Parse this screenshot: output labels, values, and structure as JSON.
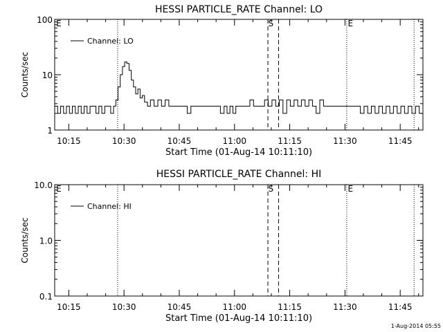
{
  "footer": {
    "timestamp": "1-Aug-2014 05:55"
  },
  "chart_data": [
    {
      "type": "line",
      "title": "HESSI PARTICLE_RATE Channel: LO",
      "xlabel": "Start Time (01-Aug-14 10:11:10)",
      "ylabel": "Counts/sec",
      "y_scale": "log",
      "ylim": [
        1,
        100
      ],
      "y_ticks": [
        1,
        10,
        100
      ],
      "y_tick_labels": [
        "1",
        "10",
        "100"
      ],
      "x_unit": "minutes after 10:11:10",
      "xlim": [
        0,
        100
      ],
      "x_ticks": [
        3.83,
        18.83,
        33.83,
        48.83,
        63.83,
        78.83,
        93.83
      ],
      "x_tick_labels": [
        "10:15",
        "10:30",
        "10:45",
        "11:00",
        "11:15",
        "11:30",
        "11:45"
      ],
      "legend": {
        "position": "top-left",
        "label": "Channel: LO"
      },
      "markers": [
        {
          "type": "dotted",
          "x": 17.1
        },
        {
          "type": "dashed",
          "x": 57.9
        },
        {
          "type": "dashed",
          "x": 60.8
        },
        {
          "type": "dotted",
          "x": 79.3
        },
        {
          "type": "dotted",
          "x": 97.6
        }
      ],
      "marker_labels": [
        {
          "text": "E",
          "x": 0.4
        },
        {
          "text": "S",
          "x": 58.0
        },
        {
          "text": "E",
          "x": 79.6
        }
      ],
      "series": [
        {
          "name": "Channel: LO",
          "x": [
            0,
            0.8,
            1.6,
            2.4,
            3.2,
            4.0,
            4.8,
            5.6,
            6.4,
            7.2,
            8.0,
            8.8,
            9.6,
            10.4,
            11.2,
            12.0,
            12.8,
            13.6,
            14.4,
            15.2,
            16.0,
            16.6,
            17.2,
            17.8,
            18.4,
            19.0,
            19.6,
            20.2,
            20.8,
            21.4,
            22.0,
            22.6,
            23.2,
            23.8,
            24.4,
            25.2,
            26.0,
            27.0,
            28.0,
            29.0,
            30.0,
            31.0,
            32.0,
            34.0,
            36.0,
            37.0,
            38.0,
            40.0,
            42.0,
            44.0,
            45.0,
            46.0,
            46.8,
            47.6,
            48.4,
            49.2,
            50.0,
            51.0,
            52.0,
            53.0,
            54.0,
            55.0,
            56.0,
            57.0,
            58.0,
            59.0,
            60.0,
            61.0,
            62.0,
            63.0,
            64.0,
            65.0,
            66.0,
            67.0,
            68.0,
            69.0,
            70.0,
            71.0,
            72.0,
            73.0,
            74.0,
            75.0,
            76.0,
            77.0,
            78.0,
            79.0,
            80.0,
            81.0,
            82.0,
            83.0,
            84.0,
            85.0,
            86.0,
            87.0,
            88.0,
            89.0,
            90.0,
            91.0,
            92.0,
            93.0,
            94.0,
            95.0,
            96.0,
            97.0,
            98.0,
            99.0,
            100.0
          ],
          "y": [
            2.7,
            2.0,
            2.7,
            2.0,
            2.7,
            2.0,
            2.7,
            2.0,
            2.7,
            2.0,
            2.7,
            2.0,
            2.7,
            2.7,
            2.0,
            2.7,
            2.0,
            2.7,
            2.7,
            2.0,
            2.7,
            3.5,
            6.0,
            10.0,
            14.0,
            17.0,
            16.0,
            12.0,
            8.0,
            6.0,
            4.5,
            5.5,
            3.8,
            4.2,
            3.2,
            2.7,
            3.5,
            2.7,
            3.5,
            2.7,
            3.5,
            2.7,
            2.7,
            2.7,
            2.0,
            2.7,
            2.7,
            2.7,
            2.7,
            2.7,
            2.0,
            2.7,
            2.0,
            2.7,
            2.0,
            2.7,
            2.7,
            2.7,
            2.7,
            3.5,
            2.7,
            2.7,
            2.7,
            3.5,
            2.7,
            3.5,
            2.7,
            3.5,
            2.0,
            3.5,
            2.7,
            3.5,
            2.7,
            3.5,
            2.7,
            3.5,
            2.7,
            2.0,
            3.5,
            2.7,
            2.7,
            2.7,
            2.7,
            2.7,
            2.7,
            2.7,
            2.7,
            2.7,
            2.7,
            2.0,
            2.7,
            2.0,
            2.7,
            2.0,
            2.7,
            2.0,
            2.7,
            2.0,
            2.7,
            2.0,
            2.7,
            2.0,
            2.7,
            2.0,
            2.7,
            2.0,
            2.0
          ]
        }
      ]
    },
    {
      "type": "line",
      "title": "HESSI PARTICLE_RATE Channel: HI",
      "xlabel": "Start Time (01-Aug-14 10:11:10)",
      "ylabel": "Counts/sec",
      "y_scale": "log",
      "ylim": [
        0.1,
        10
      ],
      "y_ticks": [
        0.1,
        1,
        10
      ],
      "y_tick_labels": [
        "0.1",
        "1.0",
        "10.0"
      ],
      "x_unit": "minutes after 10:11:10",
      "xlim": [
        0,
        100
      ],
      "x_ticks": [
        3.83,
        18.83,
        33.83,
        48.83,
        63.83,
        78.83,
        93.83
      ],
      "x_tick_labels": [
        "10:15",
        "10:30",
        "10:45",
        "11:00",
        "11:15",
        "11:30",
        "11:45"
      ],
      "legend": {
        "position": "top-left",
        "label": "Channel: HI"
      },
      "markers": [
        {
          "type": "dotted",
          "x": 17.1
        },
        {
          "type": "dashed",
          "x": 57.9
        },
        {
          "type": "dashed",
          "x": 60.8
        },
        {
          "type": "dotted",
          "x": 79.3
        },
        {
          "type": "dotted",
          "x": 97.6
        }
      ],
      "marker_labels": [
        {
          "text": "E",
          "x": 0.4
        },
        {
          "text": "S",
          "x": 58.0
        },
        {
          "text": "E",
          "x": 79.6
        }
      ],
      "series": [
        {
          "name": "Channel: HI",
          "x": [],
          "y": []
        }
      ]
    }
  ]
}
